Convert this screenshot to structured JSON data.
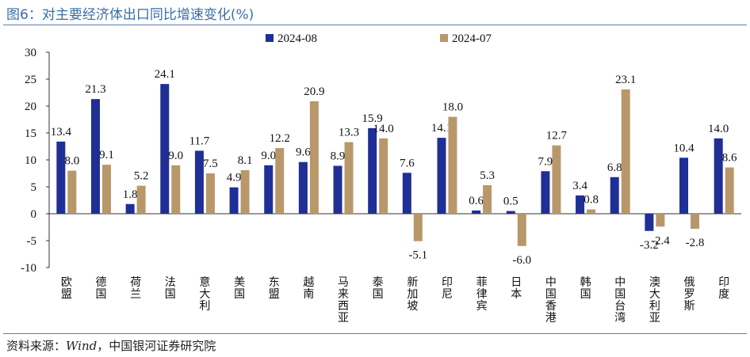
{
  "header": {
    "title": "图6：对主要经济体出口同比增速变化(%)"
  },
  "footer": {
    "source": "资料来源：",
    "source_italic": "Wind",
    "source_rest": "，中国银河证券研究院"
  },
  "colors": {
    "series_1": "#1f2f96",
    "series_2": "#b8986a",
    "rule": "#5b7fb3"
  },
  "chart_data": {
    "type": "bar",
    "title": "",
    "xlabel": "",
    "ylabel": "",
    "ylim": [
      -10,
      30
    ],
    "yticks": [
      -10,
      -5,
      0,
      5,
      10,
      15,
      20,
      25,
      30
    ],
    "legend_position": "top",
    "categories": [
      "欧盟",
      "德国",
      "荷兰",
      "法国",
      "意大利",
      "美国",
      "东盟",
      "越南",
      "马来西亚",
      "泰国",
      "新加坡",
      "印尼",
      "菲律宾",
      "日本",
      "中国香港",
      "韩国",
      "中国台湾",
      "澳大利亚",
      "俄罗斯",
      "印度"
    ],
    "series": [
      {
        "name": "2024-08",
        "values": [
          13.4,
          21.3,
          1.8,
          24.1,
          11.7,
          4.9,
          9.0,
          9.6,
          8.9,
          15.9,
          7.6,
          14.1,
          0.6,
          0.5,
          7.9,
          3.4,
          6.8,
          -3.2,
          10.4,
          14.0
        ]
      },
      {
        "name": "2024-07",
        "values": [
          8.0,
          9.1,
          5.2,
          9.0,
          7.5,
          8.1,
          12.2,
          20.9,
          13.3,
          14.0,
          -5.1,
          18.0,
          5.3,
          -6.0,
          12.7,
          0.8,
          23.1,
          -2.4,
          -2.8,
          8.6
        ]
      }
    ]
  }
}
